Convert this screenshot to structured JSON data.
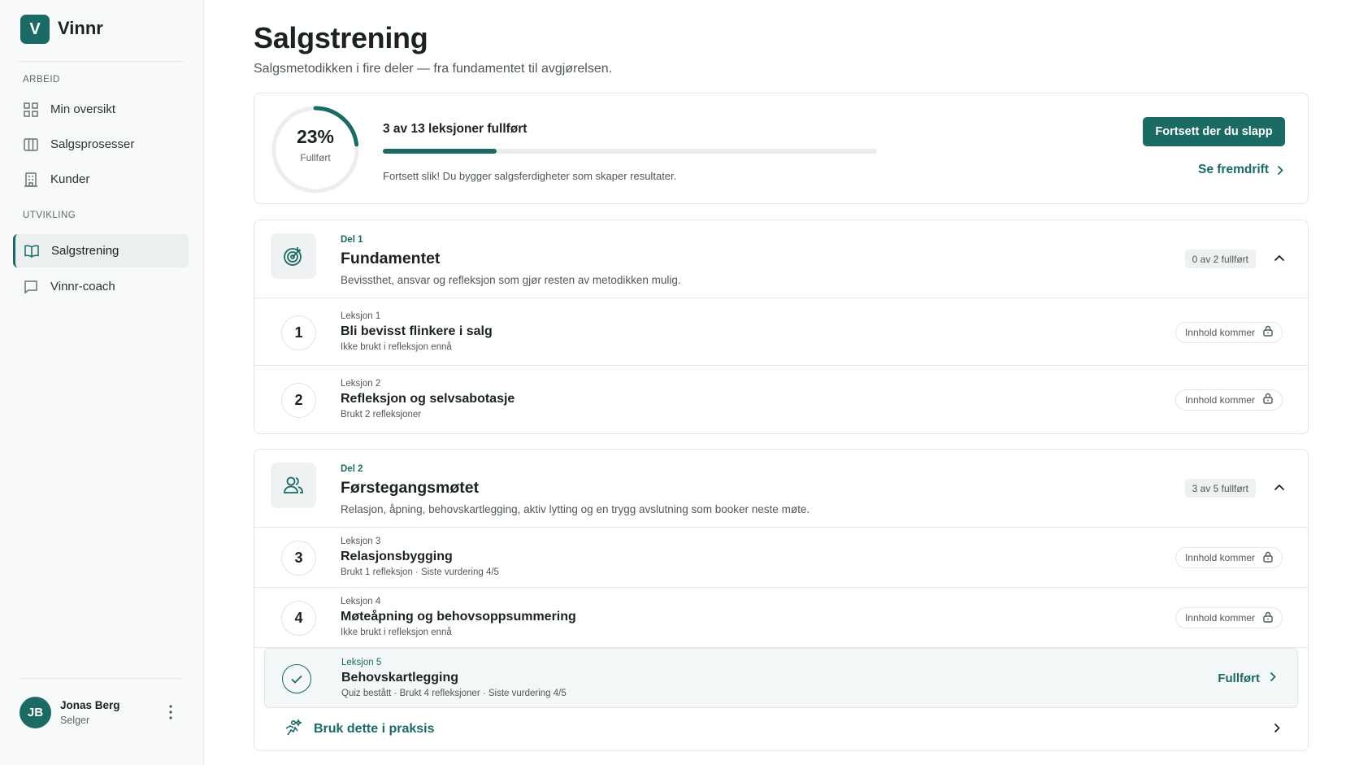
{
  "sidebar": {
    "logo": "V",
    "brand": "Vinnr",
    "groups": [
      {
        "label": "ARBEID",
        "items": [
          {
            "label": "Min oversikt",
            "icon": "grid"
          },
          {
            "label": "Salgsprosesser",
            "icon": "columns"
          },
          {
            "label": "Kunder",
            "icon": "building"
          }
        ]
      },
      {
        "label": "UTVIKLING",
        "items": [
          {
            "label": "Salgstrening",
            "icon": "book",
            "active": true
          },
          {
            "label": "Vinnr-coach",
            "icon": "chat"
          }
        ]
      }
    ],
    "user": {
      "initials": "JB",
      "name": "Jonas Berg",
      "role": "Selger"
    }
  },
  "header": {
    "title": "Salgstrening",
    "subtitle": "Salgsmetodikken i fire deler — fra fundamentet til avgjørelsen."
  },
  "progress": {
    "percent": {
      "value": 23,
      "label": "23%"
    },
    "percent_caption": "Fullført",
    "summary": "3 av 13 leksjoner fullført",
    "message": "Fortsett slik! Du bygger salgsferdigheter som skaper resultater.",
    "primary_button": "Fortsett der du slapp",
    "link": "Se fremdrift"
  },
  "sections": [
    {
      "part": "Del 1",
      "title": "Fundamentet",
      "description": "Bevissthet, ansvar og refleksjon som gjør resten av metodikken mulig.",
      "badge": "0 av 2 fullført",
      "icon": "target",
      "lessons": [
        {
          "number": "1",
          "label": "Leksjon 1",
          "title": "Bli bevisst flinkere i salg",
          "meta": "Ikke brukt i refleksjon ennå",
          "status": "Innhold kommer",
          "completed": false
        },
        {
          "number": "2",
          "label": "Leksjon 2",
          "title": "Refleksjon og selvsabotasje",
          "meta": "Brukt 2 refleksjoner",
          "status": "Innhold kommer",
          "completed": false
        }
      ]
    },
    {
      "part": "Del 2",
      "title": "Førstegangsmøtet",
      "description": "Relasjon, åpning, behovskartlegging, aktiv lytting og en trygg avslutning som booker neste møte.",
      "badge": "3 av 5 fullført",
      "icon": "people",
      "lessons": [
        {
          "number": "3",
          "label": "Leksjon 3",
          "title": "Relasjonsbygging",
          "meta": "Brukt 1 refleksjon · Siste vurdering 4/5",
          "status": "Innhold kommer",
          "completed": false
        },
        {
          "number": "4",
          "label": "Leksjon 4",
          "title": "Møteåpning og behovsoppsummering",
          "meta": "Ikke brukt i refleksjon ennå",
          "status": "Innhold kommer",
          "completed": false
        },
        {
          "label": "Leksjon 5",
          "title": "Behovskartlegging",
          "meta": "Quiz bestått · Brukt 4 refleksjoner · Siste vurdering 4/5",
          "status": "Fullført",
          "completed": true
        }
      ],
      "footer_link": "Bruk dette i praksis"
    }
  ]
}
